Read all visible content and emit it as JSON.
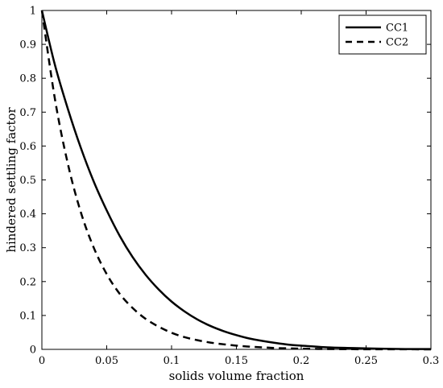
{
  "chart_data": {
    "type": "line",
    "xlabel": "solids volume fraction",
    "ylabel": "hindered settling factor",
    "xlim": [
      0,
      0.3
    ],
    "ylim": [
      0,
      1
    ],
    "xticks": [
      0,
      0.05,
      0.1,
      0.15,
      0.2,
      0.25,
      0.3
    ],
    "yticks": [
      0,
      0.1,
      0.2,
      0.3,
      0.4,
      0.5,
      0.6,
      0.7,
      0.8,
      0.9,
      1
    ],
    "xtick_labels": [
      "0",
      "0.05",
      "0.1",
      "0.15",
      "0.2",
      "0.25",
      "0.3"
    ],
    "ytick_labels": [
      "0",
      "0.1",
      "0.2",
      "0.3",
      "0.4",
      "0.5",
      "0.6",
      "0.7",
      "0.8",
      "0.9",
      "1"
    ],
    "grid": false,
    "legend_position": "top-right",
    "series": [
      {
        "name": "CC1",
        "style": "solid",
        "color": "#000000",
        "x": [
          0,
          0.01,
          0.02,
          0.03,
          0.04,
          0.05,
          0.06,
          0.07,
          0.08,
          0.09,
          0.1,
          0.11,
          0.12,
          0.13,
          0.14,
          0.15,
          0.16,
          0.17,
          0.18,
          0.19,
          0.2,
          0.22,
          0.24,
          0.26,
          0.28,
          0.3
        ],
        "y": [
          1.0,
          0.84,
          0.71,
          0.595,
          0.495,
          0.41,
          0.335,
          0.272,
          0.22,
          0.177,
          0.141,
          0.112,
          0.088,
          0.069,
          0.054,
          0.042,
          0.032,
          0.025,
          0.019,
          0.014,
          0.011,
          0.006,
          0.004,
          0.002,
          0.001,
          0.001
        ]
      },
      {
        "name": "CC2",
        "style": "dashed",
        "color": "#000000",
        "x": [
          0,
          0.01,
          0.02,
          0.03,
          0.04,
          0.05,
          0.06,
          0.07,
          0.08,
          0.09,
          0.1,
          0.11,
          0.12,
          0.13,
          0.14,
          0.15,
          0.16,
          0.17,
          0.18,
          0.19,
          0.2,
          0.22,
          0.24,
          0.26,
          0.28,
          0.3
        ],
        "y": [
          1.0,
          0.74,
          0.548,
          0.405,
          0.3,
          0.222,
          0.164,
          0.122,
          0.09,
          0.067,
          0.049,
          0.036,
          0.027,
          0.02,
          0.015,
          0.011,
          0.008,
          0.006,
          0.004,
          0.003,
          0.002,
          0.001,
          0.0005,
          0.0003,
          0.0002,
          0.0001
        ]
      }
    ]
  }
}
